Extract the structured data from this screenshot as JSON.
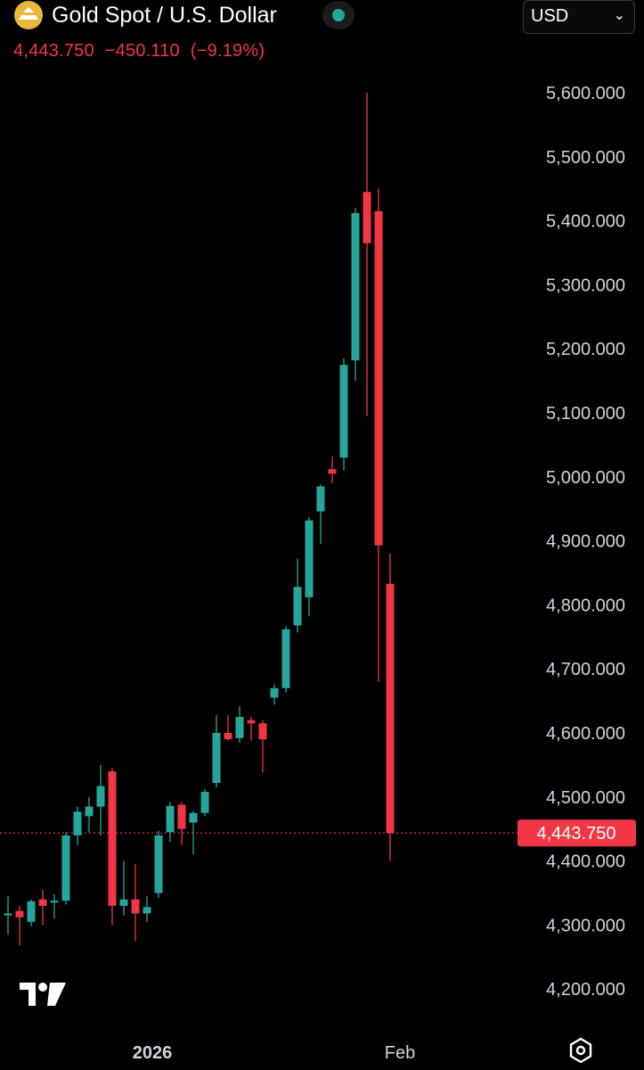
{
  "header": {
    "title": "Gold Spot / U.S. Dollar",
    "last_price": "4,443.750",
    "change": "−450.110",
    "change_pct": "(−9.19%)",
    "logo_icon": "gold-bars-icon",
    "status_icon": "market-status-dot-icon"
  },
  "currency_select": {
    "value": "USD",
    "icon": "chevron-down-icon"
  },
  "branding": {
    "icon": "tradingview-logo-icon"
  },
  "settings": {
    "icon": "settings-hexagon-icon"
  },
  "colors": {
    "up": "#26a69a",
    "down": "#f23645",
    "background": "#000000",
    "axis_text": "#d1d4dc"
  },
  "chart_data": {
    "type": "candlestick",
    "title": "",
    "xlabel": "",
    "ylabel": "",
    "ylim": [
      4180,
      5640
    ],
    "y_ticks": [
      "5,600.000",
      "5,500.000",
      "5,400.000",
      "5,300.000",
      "5,200.000",
      "5,100.000",
      "5,000.000",
      "4,900.000",
      "4,800.000",
      "4,700.000",
      "4,600.000",
      "4,500.000",
      "4,400.000",
      "4,300.000",
      "4,200.000"
    ],
    "y_tick_values": [
      5600,
      5500,
      5400,
      5300,
      5200,
      5100,
      5000,
      4900,
      4800,
      4700,
      4600,
      4500,
      4400,
      4300,
      4200
    ],
    "x_labels": [
      {
        "label": "2026",
        "index": 10
      },
      {
        "label": "Feb",
        "index": 34
      }
    ],
    "last_value": 4443.75,
    "last_label": "4,443.750",
    "grid": false,
    "candles": [
      {
        "o": 4315,
        "h": 4345,
        "l": 4285,
        "c": 4318
      },
      {
        "o": 4322,
        "h": 4330,
        "l": 4268,
        "c": 4312
      },
      {
        "o": 4305,
        "h": 4340,
        "l": 4298,
        "c": 4337
      },
      {
        "o": 4340,
        "h": 4355,
        "l": 4300,
        "c": 4330
      },
      {
        "o": 4335,
        "h": 4348,
        "l": 4310,
        "c": 4338
      },
      {
        "o": 4338,
        "h": 4445,
        "l": 4332,
        "c": 4440
      },
      {
        "o": 4440,
        "h": 4485,
        "l": 4425,
        "c": 4477
      },
      {
        "o": 4470,
        "h": 4500,
        "l": 4445,
        "c": 4485
      },
      {
        "o": 4485,
        "h": 4550,
        "l": 4440,
        "c": 4517
      },
      {
        "o": 4540,
        "h": 4545,
        "l": 4300,
        "c": 4330
      },
      {
        "o": 4330,
        "h": 4400,
        "l": 4315,
        "c": 4340
      },
      {
        "o": 4340,
        "h": 4395,
        "l": 4275,
        "c": 4318
      },
      {
        "o": 4318,
        "h": 4345,
        "l": 4305,
        "c": 4328
      },
      {
        "o": 4350,
        "h": 4447,
        "l": 4342,
        "c": 4440
      },
      {
        "o": 4445,
        "h": 4492,
        "l": 4430,
        "c": 4486
      },
      {
        "o": 4488,
        "h": 4492,
        "l": 4425,
        "c": 4450
      },
      {
        "o": 4460,
        "h": 4478,
        "l": 4410,
        "c": 4475
      },
      {
        "o": 4475,
        "h": 4512,
        "l": 4470,
        "c": 4508
      },
      {
        "o": 4522,
        "h": 4628,
        "l": 4515,
        "c": 4600
      },
      {
        "o": 4600,
        "h": 4628,
        "l": 4588,
        "c": 4590
      },
      {
        "o": 4592,
        "h": 4642,
        "l": 4585,
        "c": 4625
      },
      {
        "o": 4620,
        "h": 4625,
        "l": 4588,
        "c": 4615
      },
      {
        "o": 4615,
        "h": 4620,
        "l": 4538,
        "c": 4590
      },
      {
        "o": 4655,
        "h": 4676,
        "l": 4644,
        "c": 4670
      },
      {
        "o": 4670,
        "h": 4767,
        "l": 4663,
        "c": 4762
      },
      {
        "o": 4768,
        "h": 4872,
        "l": 4757,
        "c": 4828
      },
      {
        "o": 4812,
        "h": 4937,
        "l": 4782,
        "c": 4932
      },
      {
        "o": 4946,
        "h": 4988,
        "l": 4895,
        "c": 4985
      },
      {
        "o": 5012,
        "h": 5032,
        "l": 4990,
        "c": 5005
      },
      {
        "o": 5030,
        "h": 5185,
        "l": 5010,
        "c": 5175
      },
      {
        "o": 5182,
        "h": 5420,
        "l": 5150,
        "c": 5412
      },
      {
        "o": 5445,
        "h": 5600,
        "l": 5095,
        "c": 5365
      },
      {
        "o": 5415,
        "h": 5450,
        "l": 4680,
        "c": 4893
      },
      {
        "o": 4833,
        "h": 4880,
        "l": 4400,
        "c": 4443.75
      }
    ]
  }
}
